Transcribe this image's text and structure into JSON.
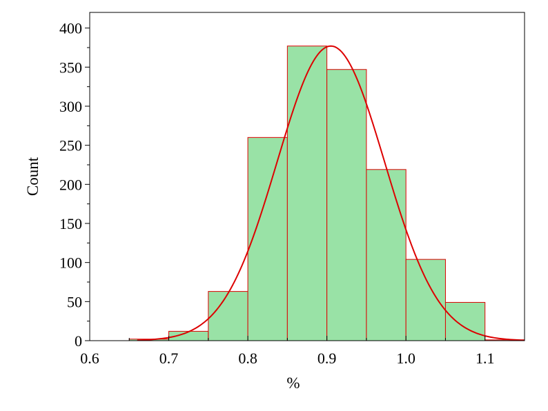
{
  "chart_data": {
    "type": "bar",
    "title": "",
    "xlabel": "%",
    "ylabel": "Count",
    "xlim": [
      0.6,
      1.15
    ],
    "ylim": [
      0,
      420
    ],
    "x_ticks": [
      "0.6",
      "0.7",
      "0.8",
      "0.9",
      "1.0",
      "1.1"
    ],
    "y_ticks": [
      "0",
      "50",
      "100",
      "150",
      "200",
      "250",
      "300",
      "350",
      "400"
    ],
    "bins": [
      {
        "start": 0.65,
        "end": 0.7,
        "value": 2
      },
      {
        "start": 0.7,
        "end": 0.75,
        "value": 12
      },
      {
        "start": 0.75,
        "end": 0.8,
        "value": 63
      },
      {
        "start": 0.8,
        "end": 0.85,
        "value": 260
      },
      {
        "start": 0.85,
        "end": 0.9,
        "value": 377
      },
      {
        "start": 0.9,
        "end": 0.95,
        "value": 347
      },
      {
        "start": 0.95,
        "end": 1.0,
        "value": 219
      },
      {
        "start": 1.0,
        "end": 1.05,
        "value": 104
      },
      {
        "start": 1.05,
        "end": 1.1,
        "value": 49
      },
      {
        "start": 1.1,
        "end": 1.15,
        "value": 1
      }
    ],
    "fit_curve": {
      "type": "normal",
      "mean": 0.905,
      "sd": 0.068,
      "peak": 377,
      "x_range": [
        0.66,
        1.15
      ]
    },
    "colors": {
      "bar_fill": "#99e2a6",
      "bar_edge": "#dd0000",
      "curve": "#dd0000",
      "axis": "#000000"
    },
    "grid": false,
    "legend": "none"
  }
}
